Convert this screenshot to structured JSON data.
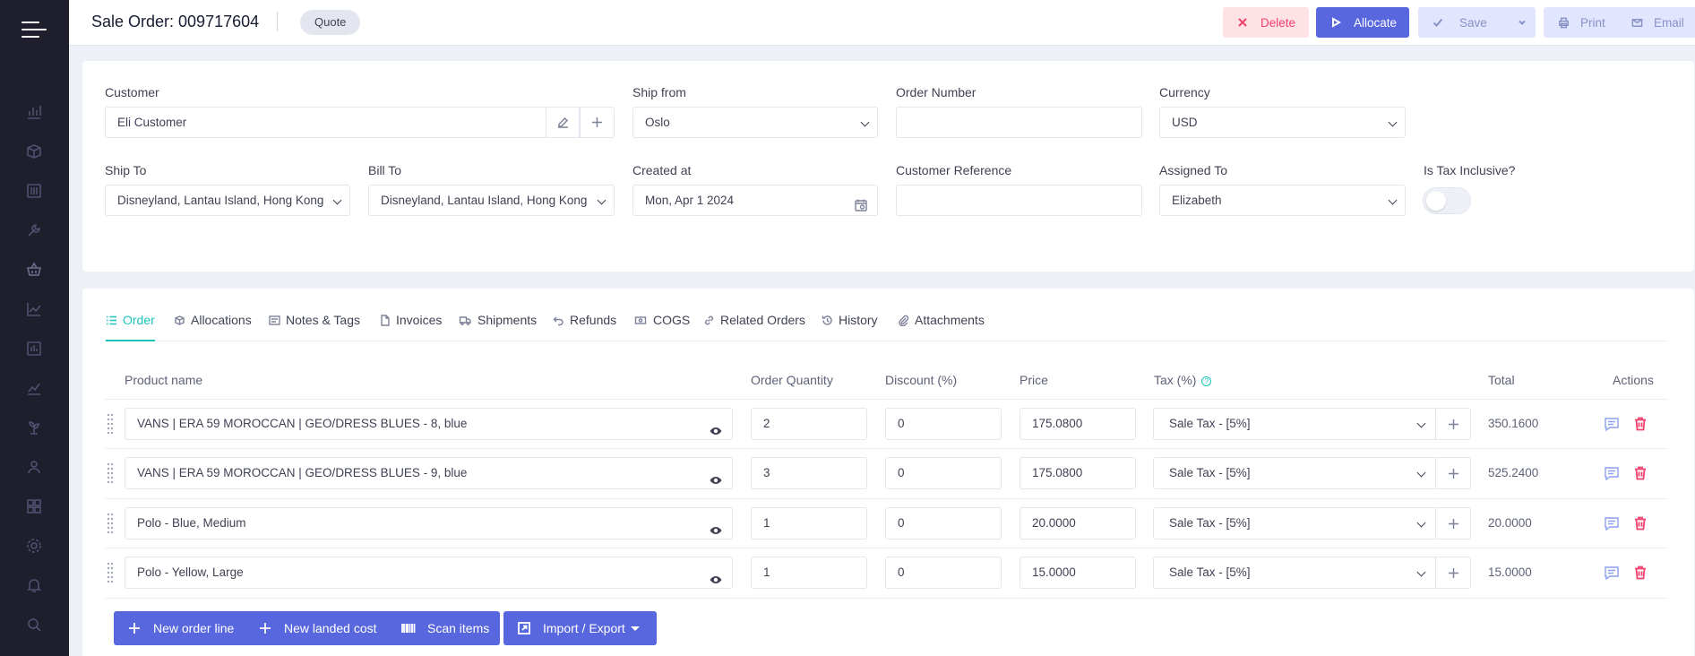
{
  "header": {
    "title": "Sale Order: 009717604",
    "status": "Quote",
    "delete_label": "Delete",
    "allocate_label": "Allocate",
    "save_label": "Save",
    "print_label": "Print",
    "email_label": "Email"
  },
  "sidebar": {
    "icons": [
      "bar-chart-icon",
      "box-icon",
      "sliders-icon",
      "wrench-icon",
      "basket-icon",
      "line-chart-icon",
      "report-icon",
      "trend-icon",
      "plant-icon",
      "contacts-icon",
      "apps-icon",
      "settings-icon",
      "bell-icon",
      "search-icon"
    ]
  },
  "form": {
    "customer_label": "Customer",
    "customer_value": "Eli Customer",
    "ship_from_label": "Ship from",
    "ship_from_value": "Oslo",
    "order_number_label": "Order Number",
    "order_number_value": "",
    "currency_label": "Currency",
    "currency_value": "USD",
    "ship_to_label": "Ship To",
    "ship_to_value": "Disneyland, Lantau Island, Hong Kong",
    "bill_to_label": "Bill To",
    "bill_to_value": "Disneyland, Lantau Island, Hong Kong",
    "created_at_label": "Created at",
    "created_at_value": "Mon, Apr 1 2024",
    "customer_reference_label": "Customer Reference",
    "customer_reference_value": "",
    "assigned_to_label": "Assigned To",
    "assigned_to_value": "Elizabeth",
    "tax_inclusive_label": "Is Tax Inclusive?",
    "tax_inclusive_on": false
  },
  "tabs": [
    {
      "label": "Order",
      "icon": "list-icon",
      "active": true
    },
    {
      "label": "Allocations",
      "icon": "boxes-icon",
      "active": false
    },
    {
      "label": "Notes & Tags",
      "icon": "notes-icon",
      "active": false
    },
    {
      "label": "Invoices",
      "icon": "file-icon",
      "active": false
    },
    {
      "label": "Shipments",
      "icon": "truck-icon",
      "active": false
    },
    {
      "label": "Refunds",
      "icon": "undo-icon",
      "active": false
    },
    {
      "label": "COGS",
      "icon": "money-icon",
      "active": false
    },
    {
      "label": "Related Orders",
      "icon": "link-icon",
      "active": false
    },
    {
      "label": "History",
      "icon": "history-icon",
      "active": false
    },
    {
      "label": "Attachments",
      "icon": "paperclip-icon",
      "active": false
    }
  ],
  "table": {
    "headers": {
      "product": "Product name",
      "quantity": "Order Quantity",
      "discount": "Discount (%)",
      "price": "Price",
      "tax": "Tax (%)",
      "total": "Total",
      "actions": "Actions"
    },
    "rows": [
      {
        "product": "VANS | ERA 59 MOROCCAN | GEO/DRESS BLUES - 8, blue",
        "quantity": "2",
        "discount": "0",
        "price": "175.0800",
        "tax": "Sale Tax - [5%]",
        "total": "350.1600"
      },
      {
        "product": "VANS | ERA 59 MOROCCAN | GEO/DRESS BLUES - 9, blue",
        "quantity": "3",
        "discount": "0",
        "price": "175.0800",
        "tax": "Sale Tax - [5%]",
        "total": "525.2400"
      },
      {
        "product": "Polo - Blue, Medium",
        "quantity": "1",
        "discount": "0",
        "price": "20.0000",
        "tax": "Sale Tax - [5%]",
        "total": "20.0000"
      },
      {
        "product": "Polo - Yellow, Large",
        "quantity": "1",
        "discount": "0",
        "price": "15.0000",
        "tax": "Sale Tax - [5%]",
        "total": "15.0000"
      }
    ]
  },
  "footer": {
    "new_order_line": "New order line",
    "new_landed_cost": "New landed cost",
    "scan_items": "Scan items",
    "import_export": "Import / Export"
  },
  "colors": {
    "sidebar_bg": "#1e1e2d",
    "primary": "#5867dd",
    "danger": "#f1416c",
    "accent": "#1bc5bd"
  }
}
